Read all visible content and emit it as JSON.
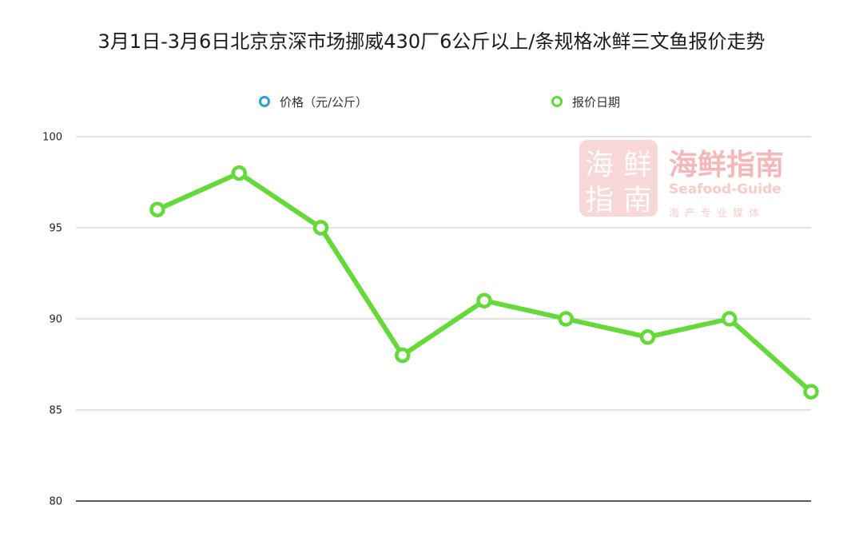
{
  "chart_data": {
    "type": "line",
    "title": "3月1日-3月6日北京京深市场挪威430厂6公斤以上/条规格冰鲜三文鱼报价走势",
    "xlabel": "",
    "ylabel": "",
    "ylim": [
      80,
      100
    ],
    "yticks": [
      80,
      85,
      90,
      95,
      100
    ],
    "grid": true,
    "legend_position": "top",
    "legend": [
      "价格（元/公斤）",
      "报价日期"
    ],
    "series": [
      {
        "name": "报价日期",
        "color": "#66d93a",
        "values": [
          96,
          98,
          95,
          88,
          91,
          90,
          89,
          90,
          86
        ]
      }
    ],
    "legend_colors": [
      "#2d9fd8",
      "#66d93a"
    ]
  },
  "watermark": {
    "logo_chars": [
      "海",
      "鲜",
      "指",
      "南"
    ],
    "name": "海鲜指南",
    "english": "Seafood-Guide",
    "tagline": "海产专业媒体"
  }
}
